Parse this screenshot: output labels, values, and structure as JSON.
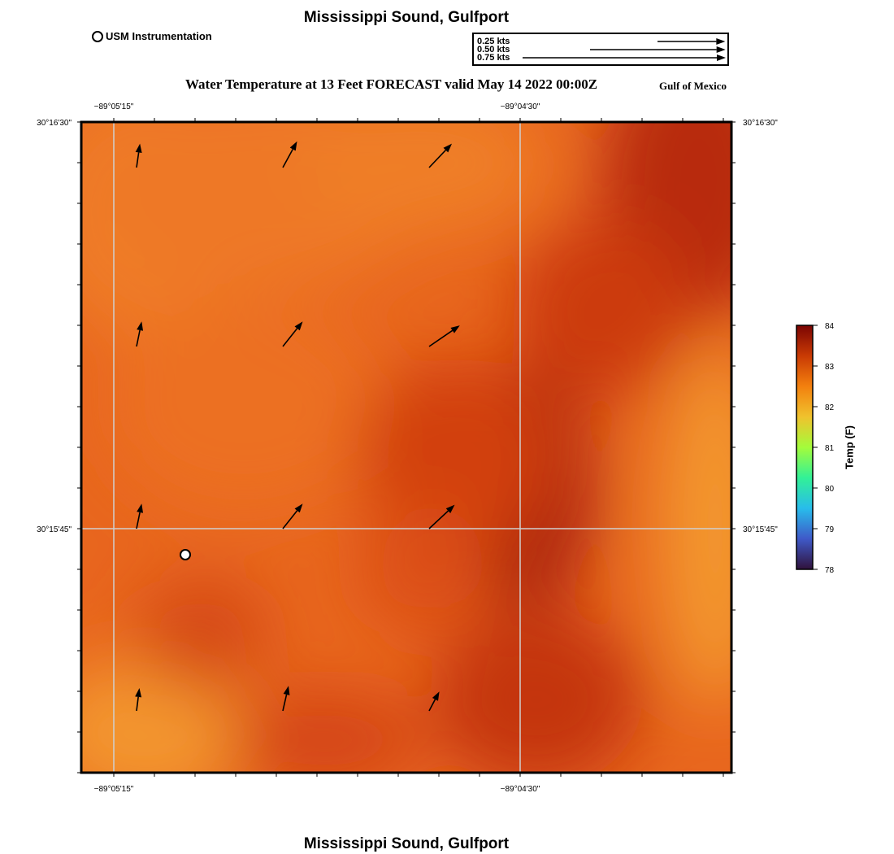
{
  "header": {
    "title": "Mississippi Sound, Gulfport",
    "legend_label": "USM Instrumentation",
    "subtitle": "Water Temperature at 13 Feet FORECAST valid May 14 2022 00:00Z",
    "region": "Gulf of Mexico"
  },
  "vector_scale": {
    "entries": [
      {
        "label": "0.25 kts",
        "speed": 0.25
      },
      {
        "label": "0.50 kts",
        "speed": 0.5
      },
      {
        "label": "0.75 kts",
        "speed": 0.75
      }
    ]
  },
  "map": {
    "lon_labels": [
      "−89°05'15\"",
      "−89°04'30\""
    ],
    "lat_labels": [
      "30°16'30\"",
      "30°15'45\""
    ],
    "station": {
      "name": "USM Instrumentation",
      "lon": -89.0853,
      "lat": 30.2617
    },
    "currents": [
      {
        "lon": -89.0868,
        "lat": 30.2736,
        "u": 0.06,
        "v": 0.42
      },
      {
        "lon": -89.0823,
        "lat": 30.2736,
        "u": 0.25,
        "v": 0.46
      },
      {
        "lon": -89.0778,
        "lat": 30.2736,
        "u": 0.4,
        "v": 0.42
      },
      {
        "lon": -89.0868,
        "lat": 30.2681,
        "u": 0.09,
        "v": 0.44
      },
      {
        "lon": -89.0823,
        "lat": 30.2681,
        "u": 0.35,
        "v": 0.44
      },
      {
        "lon": -89.0778,
        "lat": 30.2681,
        "u": 0.54,
        "v": 0.37
      },
      {
        "lon": -89.0868,
        "lat": 30.2625,
        "u": 0.09,
        "v": 0.44
      },
      {
        "lon": -89.0823,
        "lat": 30.2625,
        "u": 0.35,
        "v": 0.44
      },
      {
        "lon": -89.0778,
        "lat": 30.2625,
        "u": 0.45,
        "v": 0.42
      },
      {
        "lon": -89.0868,
        "lat": 30.2569,
        "u": 0.05,
        "v": 0.4
      },
      {
        "lon": -89.0823,
        "lat": 30.2569,
        "u": 0.1,
        "v": 0.44
      },
      {
        "lon": -89.0778,
        "lat": 30.2569,
        "u": 0.18,
        "v": 0.34
      }
    ]
  },
  "colorbar": {
    "label": "Temp (F)",
    "min": 78,
    "max": 84,
    "ticks": [
      "78",
      "79",
      "80",
      "81",
      "82",
      "83",
      "84"
    ],
    "colors": [
      "#30123b",
      "#3f59c8",
      "#28bceb",
      "#32f197",
      "#a4fc3b",
      "#f0c22d",
      "#f3800e",
      "#c93a04",
      "#7a0403"
    ]
  }
}
